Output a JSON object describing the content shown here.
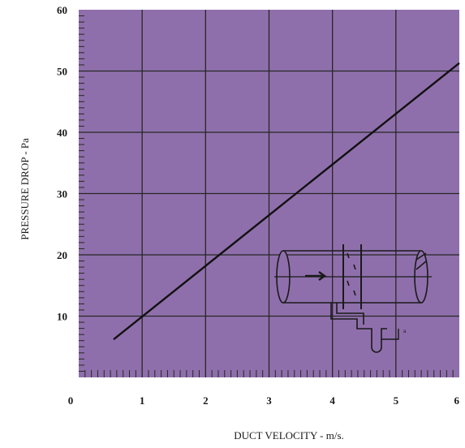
{
  "chart_data": {
    "type": "line",
    "xlabel": "DUCT VELOCITY - m/s.",
    "ylabel": "PRESSURE DROP - Pa",
    "xlim": [
      0,
      6
    ],
    "ylim": [
      0,
      60
    ],
    "x_ticks": [
      "0",
      "1",
      "2",
      "3",
      "4",
      "5",
      "6"
    ],
    "y_ticks": [
      "10",
      "20",
      "30",
      "40",
      "50",
      "60"
    ],
    "grid": true,
    "colors": {
      "plot_background": "#8f6fab",
      "grid": "#262626",
      "line": "#111111",
      "inset": "#ffffff"
    },
    "series": [
      {
        "x": [
          0.55,
          6.0
        ],
        "y": [
          6.2,
          51.3
        ]
      }
    ],
    "inset_icon": "duct-with-filter-and-manometer-icon"
  }
}
